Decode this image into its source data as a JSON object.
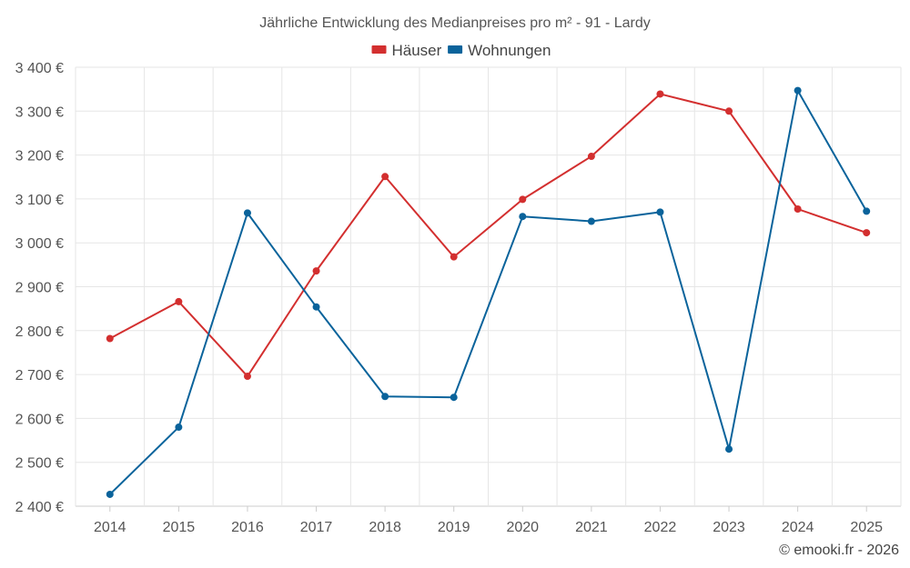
{
  "chart_data": {
    "type": "line",
    "title": "Jährliche Entwicklung des Medianpreises pro m² - 91 - Lardy",
    "categories": [
      "2014",
      "2015",
      "2016",
      "2017",
      "2018",
      "2019",
      "2020",
      "2021",
      "2022",
      "2023",
      "2024",
      "2025"
    ],
    "series": [
      {
        "name": "Häuser",
        "color": "#d32f2f",
        "values": [
          2782,
          2866,
          2696,
          2936,
          3151,
          2968,
          3099,
          3197,
          3339,
          3300,
          3077,
          3023
        ]
      },
      {
        "name": "Wohnungen",
        "color": "#0a639b",
        "values": [
          2427,
          2580,
          3068,
          2854,
          2650,
          2648,
          3060,
          3049,
          3070,
          2530,
          3347,
          3072
        ]
      }
    ],
    "ylim": [
      2400,
      3400
    ],
    "yticks": [
      2400,
      2500,
      2600,
      2700,
      2800,
      2900,
      3000,
      3100,
      3200,
      3300,
      3400
    ],
    "ytick_labels": [
      "2 400 €",
      "2 500 €",
      "2 600 €",
      "2 700 €",
      "2 800 €",
      "2 900 €",
      "3 000 €",
      "3 100 €",
      "3 200 €",
      "3 300 €",
      "3 400 €"
    ],
    "grid": true,
    "legend": "top-center"
  },
  "credit": "© emooki.fr - 2026"
}
